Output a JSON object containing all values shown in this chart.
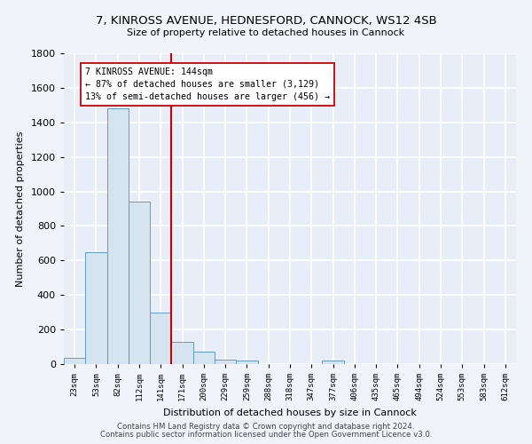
{
  "title_line1": "7, KINROSS AVENUE, HEDNESFORD, CANNOCK, WS12 4SB",
  "title_line2": "Size of property relative to detached houses in Cannock",
  "xlabel": "Distribution of detached houses by size in Cannock",
  "ylabel": "Number of detached properties",
  "categories": [
    "23sqm",
    "53sqm",
    "82sqm",
    "112sqm",
    "141sqm",
    "171sqm",
    "200sqm",
    "229sqm",
    "259sqm",
    "288sqm",
    "318sqm",
    "347sqm",
    "377sqm",
    "406sqm",
    "435sqm",
    "465sqm",
    "494sqm",
    "524sqm",
    "553sqm",
    "583sqm",
    "612sqm"
  ],
  "values": [
    35,
    650,
    1480,
    940,
    300,
    130,
    70,
    25,
    20,
    0,
    0,
    0,
    20,
    0,
    0,
    0,
    0,
    0,
    0,
    0,
    0
  ],
  "bar_color": "#d6e4f0",
  "bar_edge_color": "#6699cc",
  "vline_x_index": 4,
  "vline_color": "#cc0000",
  "annotation_line1": "7 KINROSS AVENUE: 144sqm",
  "annotation_line2": "← 87% of detached houses are smaller (3,129)",
  "annotation_line3": "13% of semi-detached houses are larger (456) →",
  "box_color": "#ffffff",
  "box_edge_color": "#cc0000",
  "ylim": [
    0,
    1800
  ],
  "yticks": [
    0,
    200,
    400,
    600,
    800,
    1000,
    1200,
    1400,
    1600,
    1800
  ],
  "background_color": "#e8eef8",
  "grid_color": "#ffffff",
  "footer_line1": "Contains HM Land Registry data © Crown copyright and database right 2024.",
  "footer_line2": "Contains public sector information licensed under the Open Government Licence v3.0."
}
